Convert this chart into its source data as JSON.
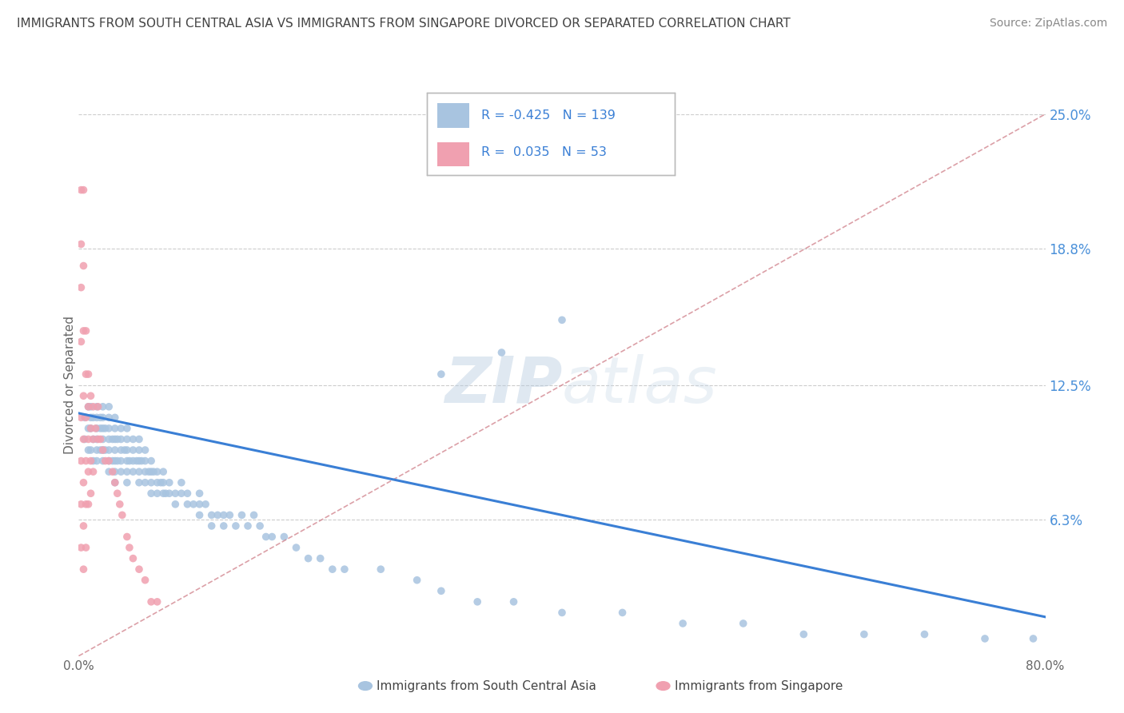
{
  "title": "IMMIGRANTS FROM SOUTH CENTRAL ASIA VS IMMIGRANTS FROM SINGAPORE DIVORCED OR SEPARATED CORRELATION CHART",
  "source": "Source: ZipAtlas.com",
  "color_blue": "#a8c4e0",
  "color_pink": "#f0a0b0",
  "color_blue_line": "#3a7fd5",
  "color_pink_line": "#d0808a",
  "watermark_color": "#c8d8e8",
  "title_color": "#444444",
  "source_color": "#888888",
  "tick_color": "#4a90d9",
  "label_color": "#666666",
  "xlim": [
    0.0,
    0.8
  ],
  "ylim": [
    0.0,
    0.25
  ],
  "blue_R": -0.425,
  "pink_R": 0.035,
  "blue_N": 139,
  "pink_N": 53,
  "ytick_vals": [
    0.063,
    0.125,
    0.188,
    0.25
  ],
  "ytick_labels": [
    "6.3%",
    "12.5%",
    "18.8%",
    "25.0%"
  ],
  "blue_line_x": [
    0.0,
    0.8
  ],
  "blue_line_y": [
    0.112,
    0.018
  ],
  "pink_line_x": [
    0.0,
    0.8
  ],
  "pink_line_y": [
    0.0,
    0.25
  ],
  "blue_scatter_x": [
    0.005,
    0.005,
    0.008,
    0.008,
    0.008,
    0.01,
    0.01,
    0.01,
    0.01,
    0.012,
    0.012,
    0.012,
    0.015,
    0.015,
    0.015,
    0.015,
    0.015,
    0.015,
    0.018,
    0.018,
    0.018,
    0.02,
    0.02,
    0.02,
    0.02,
    0.02,
    0.02,
    0.022,
    0.022,
    0.025,
    0.025,
    0.025,
    0.025,
    0.025,
    0.025,
    0.025,
    0.028,
    0.028,
    0.03,
    0.03,
    0.03,
    0.03,
    0.03,
    0.03,
    0.03,
    0.032,
    0.032,
    0.035,
    0.035,
    0.035,
    0.035,
    0.035,
    0.038,
    0.04,
    0.04,
    0.04,
    0.04,
    0.04,
    0.04,
    0.042,
    0.045,
    0.045,
    0.045,
    0.045,
    0.048,
    0.05,
    0.05,
    0.05,
    0.05,
    0.05,
    0.052,
    0.055,
    0.055,
    0.055,
    0.055,
    0.058,
    0.06,
    0.06,
    0.06,
    0.06,
    0.062,
    0.065,
    0.065,
    0.065,
    0.068,
    0.07,
    0.07,
    0.07,
    0.072,
    0.075,
    0.075,
    0.08,
    0.08,
    0.085,
    0.085,
    0.09,
    0.09,
    0.095,
    0.1,
    0.1,
    0.1,
    0.105,
    0.11,
    0.11,
    0.115,
    0.12,
    0.12,
    0.125,
    0.13,
    0.135,
    0.14,
    0.145,
    0.15,
    0.155,
    0.16,
    0.17,
    0.18,
    0.19,
    0.2,
    0.21,
    0.22,
    0.25,
    0.28,
    0.3,
    0.33,
    0.36,
    0.4,
    0.45,
    0.5,
    0.55,
    0.6,
    0.65,
    0.7,
    0.75,
    0.79,
    0.3,
    0.35,
    0.4
  ],
  "blue_scatter_y": [
    0.11,
    0.1,
    0.115,
    0.105,
    0.095,
    0.115,
    0.11,
    0.105,
    0.095,
    0.11,
    0.1,
    0.09,
    0.115,
    0.11,
    0.105,
    0.1,
    0.095,
    0.09,
    0.11,
    0.105,
    0.095,
    0.115,
    0.11,
    0.105,
    0.1,
    0.095,
    0.09,
    0.105,
    0.095,
    0.115,
    0.11,
    0.105,
    0.1,
    0.095,
    0.09,
    0.085,
    0.1,
    0.09,
    0.11,
    0.105,
    0.1,
    0.095,
    0.09,
    0.085,
    0.08,
    0.1,
    0.09,
    0.105,
    0.1,
    0.095,
    0.09,
    0.085,
    0.095,
    0.105,
    0.1,
    0.095,
    0.09,
    0.085,
    0.08,
    0.09,
    0.1,
    0.095,
    0.09,
    0.085,
    0.09,
    0.1,
    0.095,
    0.09,
    0.085,
    0.08,
    0.09,
    0.095,
    0.09,
    0.085,
    0.08,
    0.085,
    0.09,
    0.085,
    0.08,
    0.075,
    0.085,
    0.085,
    0.08,
    0.075,
    0.08,
    0.085,
    0.08,
    0.075,
    0.075,
    0.08,
    0.075,
    0.075,
    0.07,
    0.08,
    0.075,
    0.075,
    0.07,
    0.07,
    0.075,
    0.07,
    0.065,
    0.07,
    0.065,
    0.06,
    0.065,
    0.06,
    0.065,
    0.065,
    0.06,
    0.065,
    0.06,
    0.065,
    0.06,
    0.055,
    0.055,
    0.055,
    0.05,
    0.045,
    0.045,
    0.04,
    0.04,
    0.04,
    0.035,
    0.03,
    0.025,
    0.025,
    0.02,
    0.02,
    0.015,
    0.015,
    0.01,
    0.01,
    0.01,
    0.008,
    0.008,
    0.13,
    0.14,
    0.155
  ],
  "pink_scatter_x": [
    0.002,
    0.002,
    0.002,
    0.002,
    0.002,
    0.002,
    0.002,
    0.002,
    0.004,
    0.004,
    0.004,
    0.004,
    0.004,
    0.004,
    0.004,
    0.004,
    0.006,
    0.006,
    0.006,
    0.006,
    0.006,
    0.006,
    0.008,
    0.008,
    0.008,
    0.008,
    0.008,
    0.01,
    0.01,
    0.01,
    0.01,
    0.012,
    0.012,
    0.012,
    0.014,
    0.016,
    0.016,
    0.018,
    0.02,
    0.022,
    0.025,
    0.028,
    0.03,
    0.032,
    0.034,
    0.036,
    0.04,
    0.042,
    0.045,
    0.05,
    0.055,
    0.06,
    0.065
  ],
  "pink_scatter_y": [
    0.215,
    0.19,
    0.17,
    0.145,
    0.11,
    0.09,
    0.07,
    0.05,
    0.215,
    0.18,
    0.15,
    0.12,
    0.1,
    0.08,
    0.06,
    0.04,
    0.15,
    0.13,
    0.11,
    0.09,
    0.07,
    0.05,
    0.13,
    0.115,
    0.1,
    0.085,
    0.07,
    0.12,
    0.105,
    0.09,
    0.075,
    0.115,
    0.1,
    0.085,
    0.105,
    0.115,
    0.1,
    0.1,
    0.095,
    0.09,
    0.09,
    0.085,
    0.08,
    0.075,
    0.07,
    0.065,
    0.055,
    0.05,
    0.045,
    0.04,
    0.035,
    0.025,
    0.025
  ]
}
